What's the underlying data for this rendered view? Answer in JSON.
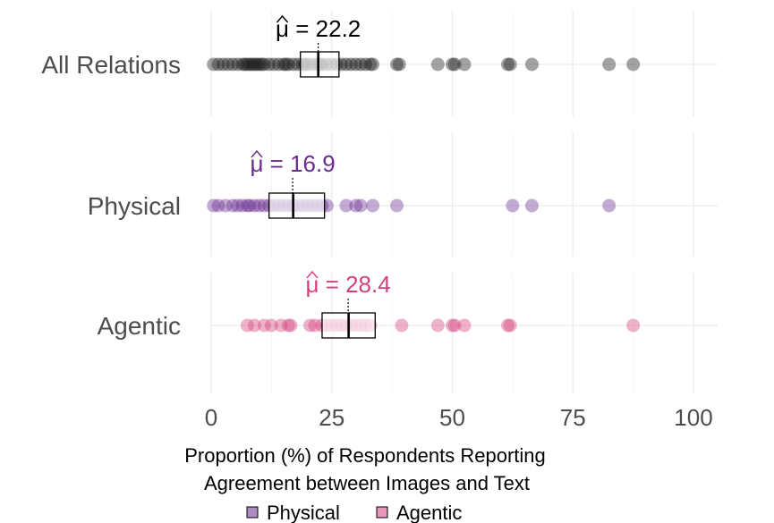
{
  "chart_data": {
    "type": "scatter",
    "title": "",
    "xlabel": [
      "Proportion (%) of Respondents Reporting",
      "Agreement between Images and Text"
    ],
    "xlim": [
      0,
      105
    ],
    "x_ticks": [
      0,
      25,
      50,
      75,
      100
    ],
    "x_tick_labels": [
      "0",
      "25",
      "50",
      "75",
      "100"
    ],
    "grid": true,
    "colors": {
      "all": "#1a1a1a",
      "physical": "#6a2c91",
      "agentic": "#d4407e"
    },
    "panels": [
      {
        "id": "all",
        "label": "All Relations",
        "mean_symbol": "μ",
        "mean_text": " = 22.2",
        "mean": 22.2,
        "box": {
          "q1": 18.5,
          "median": 22.2,
          "q3": 26.5
        },
        "points": [
          0.5,
          1.5,
          2.5,
          3.5,
          4.5,
          5.5,
          6.5,
          7,
          7.5,
          8,
          8.5,
          9,
          9.5,
          10,
          10.5,
          11,
          12,
          13,
          14,
          15,
          15.5,
          16,
          17,
          18,
          19,
          19.5,
          20,
          21,
          22,
          22.5,
          23,
          24,
          25,
          26,
          27,
          28,
          29,
          30,
          31,
          32,
          33,
          33.5,
          38.5,
          39,
          47,
          50,
          50.5,
          52.5,
          61.5,
          62,
          66.5,
          82.5,
          87.5
        ]
      },
      {
        "id": "physical",
        "label": "Physical",
        "mean_symbol": "μ",
        "mean_text": " = 16.9",
        "mean": 16.9,
        "box": {
          "q1": 12,
          "median": 17,
          "q3": 23.5
        },
        "points": [
          0.5,
          1.5,
          3,
          4.5,
          5.5,
          6.5,
          7.5,
          8,
          9,
          10,
          11,
          12,
          13,
          14,
          15,
          16,
          17,
          18,
          19,
          20,
          21,
          22,
          23,
          24,
          28,
          30,
          31,
          33.5,
          38.5,
          62.5,
          66.5,
          82.5
        ]
      },
      {
        "id": "agentic",
        "label": "Agentic",
        "mean_symbol": "μ",
        "mean_text": " = 28.4",
        "mean": 28.4,
        "box": {
          "q1": 23,
          "median": 28.5,
          "q3": 34
        },
        "points": [
          7.5,
          9,
          11,
          12.5,
          14.5,
          16,
          16.5,
          20.5,
          21.5,
          23,
          24,
          25,
          26,
          27,
          28,
          29,
          30,
          31,
          32,
          33,
          39.5,
          47,
          50,
          50.5,
          52.5,
          61.5,
          62,
          87.5
        ]
      }
    ],
    "legend": {
      "position": "bottom",
      "items": [
        {
          "name": "Physical",
          "color": "#6a2c91"
        },
        {
          "name": "Agentic",
          "color": "#d4407e"
        }
      ]
    }
  }
}
